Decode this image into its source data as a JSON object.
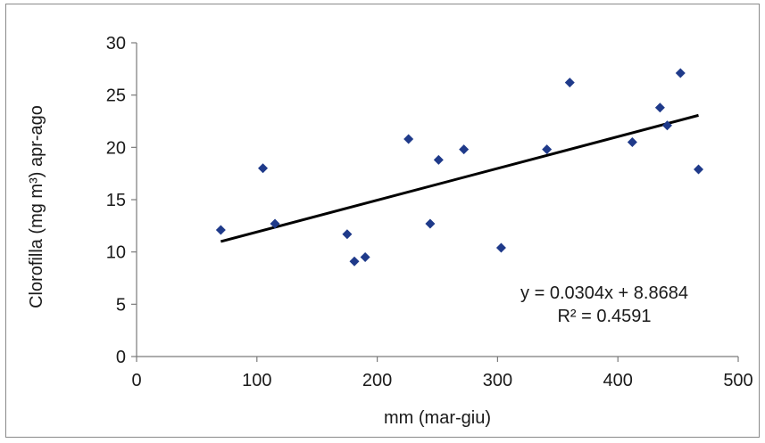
{
  "chart_data": {
    "type": "scatter",
    "title": "",
    "xlabel": "mm (mar-giu)",
    "ylabel": "Clorofilla (mg m³) apr-ago",
    "xlim": [
      0,
      500
    ],
    "ylim": [
      0,
      30
    ],
    "xticks": [
      0,
      100,
      200,
      300,
      400,
      500
    ],
    "yticks": [
      0,
      5,
      10,
      15,
      20,
      25,
      30
    ],
    "grid": false,
    "legend": "none",
    "series": [
      {
        "color": "#1f3a8a",
        "marker": "diamond",
        "points": [
          {
            "x": 70,
            "y": 12.1
          },
          {
            "x": 105,
            "y": 18.0
          },
          {
            "x": 115,
            "y": 12.7
          },
          {
            "x": 175,
            "y": 11.7
          },
          {
            "x": 181,
            "y": 9.1
          },
          {
            "x": 190,
            "y": 9.5
          },
          {
            "x": 226,
            "y": 20.8
          },
          {
            "x": 244,
            "y": 12.7
          },
          {
            "x": 251,
            "y": 18.8
          },
          {
            "x": 272,
            "y": 19.8
          },
          {
            "x": 303,
            "y": 10.4
          },
          {
            "x": 341,
            "y": 19.8
          },
          {
            "x": 360,
            "y": 26.2
          },
          {
            "x": 412,
            "y": 20.5
          },
          {
            "x": 435,
            "y": 23.8
          },
          {
            "x": 441,
            "y": 22.1
          },
          {
            "x": 452,
            "y": 27.1
          },
          {
            "x": 467,
            "y": 17.9
          }
        ]
      }
    ],
    "trendline": {
      "type": "linear",
      "slope": 0.0304,
      "intercept": 8.8684,
      "x_range": [
        70,
        467
      ],
      "color": "#000000"
    },
    "annotations": {
      "equation": "y = 0.0304x + 8.8684",
      "r_squared": "R² = 0.4591"
    }
  }
}
